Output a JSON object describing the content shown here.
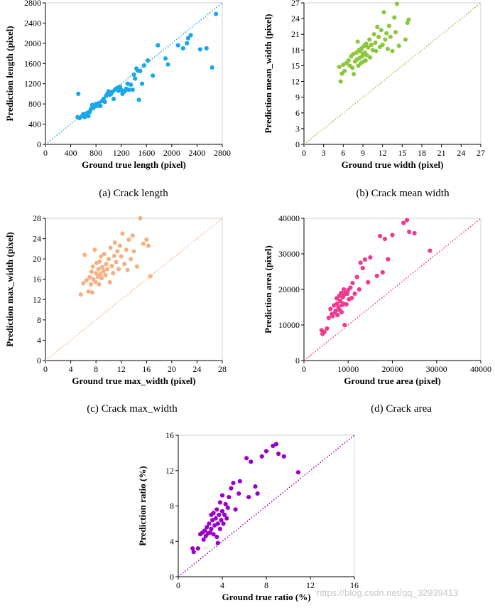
{
  "captions": {
    "a": "(a) Crack length",
    "b": "(b) Crack mean width",
    "c": "(c) Crack max_width",
    "d": "(d) Crack area"
  },
  "watermark": "https://blog.csdn.net/qq_32939413",
  "chart_data": [
    {
      "type": "scatter",
      "xlabel": "Ground true length (pixel)",
      "ylabel": "Prediction length (pixel)",
      "xlim": [
        0,
        2800
      ],
      "ylim": [
        0,
        2800
      ],
      "xticks": [
        "0",
        "400",
        "800",
        "1200",
        "1600",
        "2000",
        "2400",
        "2800"
      ],
      "yticks": [
        "0",
        "400",
        "800",
        "1200",
        "1600",
        "2000",
        "2400",
        "2800"
      ],
      "color": "#1aa7e8",
      "reference_line": "y = x",
      "points": [
        [
          520,
          1000
        ],
        [
          510,
          540
        ],
        [
          540,
          520
        ],
        [
          580,
          560
        ],
        [
          600,
          600
        ],
        [
          620,
          540
        ],
        [
          640,
          580
        ],
        [
          660,
          620
        ],
        [
          680,
          560
        ],
        [
          700,
          640
        ],
        [
          720,
          700
        ],
        [
          740,
          780
        ],
        [
          760,
          720
        ],
        [
          780,
          760
        ],
        [
          800,
          800
        ],
        [
          820,
          760
        ],
        [
          850,
          820
        ],
        [
          870,
          760
        ],
        [
          900,
          860
        ],
        [
          920,
          900
        ],
        [
          940,
          840
        ],
        [
          960,
          960
        ],
        [
          980,
          1000
        ],
        [
          1000,
          1050
        ],
        [
          1020,
          980
        ],
        [
          1040,
          1000
        ],
        [
          1060,
          1040
        ],
        [
          1080,
          900
        ],
        [
          1100,
          1080
        ],
        [
          1120,
          1100
        ],
        [
          1140,
          1120
        ],
        [
          1160,
          1060
        ],
        [
          1180,
          1140
        ],
        [
          1200,
          1080
        ],
        [
          1220,
          1000
        ],
        [
          1240,
          1040
        ],
        [
          1260,
          1060
        ],
        [
          1280,
          1100
        ],
        [
          1300,
          1200
        ],
        [
          1320,
          1080
        ],
        [
          1350,
          1180
        ],
        [
          1380,
          1080
        ],
        [
          1400,
          1380
        ],
        [
          1420,
          1300
        ],
        [
          1440,
          1500
        ],
        [
          1460,
          1460
        ],
        [
          1480,
          880
        ],
        [
          1500,
          1450
        ],
        [
          1530,
          1200
        ],
        [
          1560,
          1560
        ],
        [
          1620,
          1660
        ],
        [
          1700,
          1360
        ],
        [
          1780,
          1960
        ],
        [
          1900,
          1700
        ],
        [
          1940,
          1580
        ],
        [
          2100,
          1960
        ],
        [
          2180,
          1900
        ],
        [
          2240,
          2000
        ],
        [
          2260,
          2100
        ],
        [
          2300,
          2160
        ],
        [
          2450,
          1880
        ],
        [
          2550,
          1900
        ],
        [
          2640,
          1520
        ],
        [
          2700,
          2580
        ]
      ]
    },
    {
      "type": "scatter",
      "xlabel": "Ground true width (pixel)",
      "ylabel": "Prediction mean_width (pixel)",
      "xlim": [
        0,
        27
      ],
      "ylim": [
        0,
        27
      ],
      "xticks": [
        "0",
        "3",
        "6",
        "9",
        "12",
        "15",
        "18",
        "21",
        "24",
        "27"
      ],
      "yticks": [
        "0",
        "3",
        "6",
        "9",
        "12",
        "15",
        "18",
        "21",
        "24",
        "27"
      ],
      "color": "#8cc63f",
      "reference_line": "y = x",
      "points": [
        [
          5.4,
          14.8
        ],
        [
          5.6,
          12.0
        ],
        [
          5.8,
          13.5
        ],
        [
          6.0,
          15.2
        ],
        [
          6.2,
          14.0
        ],
        [
          6.5,
          15.5
        ],
        [
          6.8,
          16.0
        ],
        [
          7.0,
          15.0
        ],
        [
          7.2,
          16.8
        ],
        [
          7.4,
          14.6
        ],
        [
          7.5,
          17.2
        ],
        [
          7.6,
          13.4
        ],
        [
          7.8,
          15.8
        ],
        [
          8.0,
          17.5
        ],
        [
          8.1,
          16.2
        ],
        [
          8.2,
          19.6
        ],
        [
          8.3,
          15.0
        ],
        [
          8.4,
          18.0
        ],
        [
          8.5,
          16.5
        ],
        [
          8.6,
          17.8
        ],
        [
          8.7,
          15.5
        ],
        [
          8.8,
          18.3
        ],
        [
          8.9,
          16.8
        ],
        [
          9.0,
          17.2
        ],
        [
          9.1,
          15.8
        ],
        [
          9.2,
          18.8
        ],
        [
          9.3,
          17.5
        ],
        [
          9.4,
          16.0
        ],
        [
          9.5,
          19.2
        ],
        [
          9.6,
          17.0
        ],
        [
          9.8,
          18.5
        ],
        [
          10.0,
          20.0
        ],
        [
          10.1,
          16.6
        ],
        [
          10.3,
          19.0
        ],
        [
          10.5,
          18.0
        ],
        [
          10.7,
          21.0
        ],
        [
          10.9,
          19.4
        ],
        [
          11.0,
          17.8
        ],
        [
          11.2,
          22.4
        ],
        [
          11.4,
          20.5
        ],
        [
          11.6,
          18.6
        ],
        [
          11.8,
          21.8
        ],
        [
          12.0,
          19.0
        ],
        [
          12.2,
          25.2
        ],
        [
          12.4,
          20.0
        ],
        [
          12.6,
          21.2
        ],
        [
          12.8,
          18.2
        ],
        [
          13.0,
          22.6
        ],
        [
          13.2,
          20.5
        ],
        [
          13.5,
          17.8
        ],
        [
          13.8,
          24.2
        ],
        [
          14.0,
          21.4
        ],
        [
          14.2,
          26.8
        ],
        [
          14.5,
          18.8
        ],
        [
          15.5,
          20.0
        ],
        [
          15.8,
          23.2
        ],
        [
          16.0,
          23.8
        ]
      ]
    },
    {
      "type": "scatter",
      "xlabel": "Ground true max_width (pixel)",
      "ylabel": "Prediction max_width (pixel)",
      "xlim": [
        0,
        28
      ],
      "ylim": [
        0,
        28
      ],
      "xticks": [
        "0",
        "4",
        "8",
        "12",
        "16",
        "20",
        "24",
        "28"
      ],
      "yticks": [
        "0",
        "4",
        "8",
        "12",
        "16",
        "20",
        "24",
        "28"
      ],
      "color": "#f4b183",
      "reference_line": "y = x",
      "points": [
        [
          5.6,
          13.0
        ],
        [
          6.0,
          15.2
        ],
        [
          6.2,
          20.8
        ],
        [
          6.5,
          15.8
        ],
        [
          6.8,
          13.6
        ],
        [
          7.0,
          16.4
        ],
        [
          7.2,
          15.0
        ],
        [
          7.3,
          17.5
        ],
        [
          7.4,
          13.4
        ],
        [
          7.5,
          18.5
        ],
        [
          7.6,
          16.0
        ],
        [
          7.8,
          21.8
        ],
        [
          7.9,
          15.5
        ],
        [
          8.0,
          17.2
        ],
        [
          8.1,
          19.2
        ],
        [
          8.3,
          16.5
        ],
        [
          8.4,
          18.0
        ],
        [
          8.5,
          15.0
        ],
        [
          8.6,
          19.5
        ],
        [
          8.7,
          17.0
        ],
        [
          8.8,
          20.5
        ],
        [
          8.9,
          16.2
        ],
        [
          9.0,
          18.4
        ],
        [
          9.2,
          17.6
        ],
        [
          9.3,
          21.0
        ],
        [
          9.5,
          16.8
        ],
        [
          9.6,
          19.0
        ],
        [
          9.8,
          18.0
        ],
        [
          10.0,
          20.0
        ],
        [
          10.2,
          15.4
        ],
        [
          10.3,
          22.2
        ],
        [
          10.5,
          18.6
        ],
        [
          10.7,
          17.2
        ],
        [
          10.9,
          20.6
        ],
        [
          11.0,
          23.2
        ],
        [
          11.2,
          19.4
        ],
        [
          11.4,
          21.5
        ],
        [
          11.6,
          18.0
        ],
        [
          11.8,
          22.6
        ],
        [
          12.0,
          20.5
        ],
        [
          12.2,
          25.0
        ],
        [
          12.5,
          19.0
        ],
        [
          12.8,
          21.8
        ],
        [
          13.0,
          17.8
        ],
        [
          13.2,
          23.8
        ],
        [
          13.5,
          20.0
        ],
        [
          13.8,
          24.6
        ],
        [
          14.0,
          21.5
        ],
        [
          14.5,
          18.5
        ],
        [
          15.0,
          28.0
        ],
        [
          15.5,
          23.0
        ],
        [
          16.0,
          23.8
        ],
        [
          16.3,
          22.6
        ],
        [
          16.6,
          16.6
        ]
      ]
    },
    {
      "type": "scatter",
      "xlabel": "Ground true area (pixel)",
      "ylabel": "Prediction area (pixel)",
      "xlim": [
        0,
        40000
      ],
      "ylim": [
        0,
        40000
      ],
      "xticks": [
        "0",
        "10000",
        "20000",
        "30000",
        "40000"
      ],
      "yticks": [
        "0",
        "10000",
        "20000",
        "30000",
        "40000"
      ],
      "color": "#f0398f",
      "reference_line": "y = x",
      "points": [
        [
          4000,
          8500
        ],
        [
          4200,
          7500
        ],
        [
          4600,
          8000
        ],
        [
          5200,
          9000
        ],
        [
          5600,
          12000
        ],
        [
          6000,
          14500
        ],
        [
          6300,
          13000
        ],
        [
          6500,
          12500
        ],
        [
          6800,
          15500
        ],
        [
          7000,
          13500
        ],
        [
          7200,
          14000
        ],
        [
          7400,
          17500
        ],
        [
          7500,
          16000
        ],
        [
          7600,
          12800
        ],
        [
          7800,
          15000
        ],
        [
          8000,
          18200
        ],
        [
          8100,
          14200
        ],
        [
          8200,
          16800
        ],
        [
          8400,
          19000
        ],
        [
          8500,
          13600
        ],
        [
          8600,
          15600
        ],
        [
          8800,
          17800
        ],
        [
          8900,
          16000
        ],
        [
          9000,
          20000
        ],
        [
          9100,
          18500
        ],
        [
          9200,
          10000
        ],
        [
          9400,
          19000
        ],
        [
          9600,
          15800
        ],
        [
          9800,
          18800
        ],
        [
          10000,
          19800
        ],
        [
          10200,
          17200
        ],
        [
          10500,
          20500
        ],
        [
          10800,
          17600
        ],
        [
          11000,
          21800
        ],
        [
          11500,
          18800
        ],
        [
          12000,
          23500
        ],
        [
          12500,
          20000
        ],
        [
          12800,
          27500
        ],
        [
          13300,
          26000
        ],
        [
          13800,
          28400
        ],
        [
          14500,
          22000
        ],
        [
          15000,
          29000
        ],
        [
          16500,
          23800
        ],
        [
          17200,
          35000
        ],
        [
          17800,
          24800
        ],
        [
          18300,
          34200
        ],
        [
          19000,
          28500
        ],
        [
          20000,
          35300
        ],
        [
          22500,
          38700
        ],
        [
          23300,
          39500
        ],
        [
          23800,
          36200
        ],
        [
          25000,
          35800
        ],
        [
          28500,
          30900
        ]
      ]
    },
    {
      "type": "scatter",
      "xlabel": "Ground true ratio (%)",
      "ylabel": "Prediction ratio (%)",
      "xlim": [
        0,
        16
      ],
      "ylim": [
        0,
        16
      ],
      "xticks": [
        "0",
        "4",
        "8",
        "12",
        "16"
      ],
      "yticks": [
        "0",
        "4",
        "8",
        "12",
        "16"
      ],
      "color": "#9b00c8",
      "reference_line": "y = x",
      "points": [
        [
          1.3,
          3.2
        ],
        [
          1.4,
          2.8
        ],
        [
          1.8,
          3.2
        ],
        [
          2.0,
          4.8
        ],
        [
          2.2,
          5.0
        ],
        [
          2.3,
          4.2
        ],
        [
          2.4,
          5.2
        ],
        [
          2.5,
          4.6
        ],
        [
          2.6,
          5.6
        ],
        [
          2.7,
          4.9
        ],
        [
          2.8,
          6.0
        ],
        [
          2.9,
          5.0
        ],
        [
          3.0,
          7.0
        ],
        [
          3.0,
          5.4
        ],
        [
          3.1,
          6.4
        ],
        [
          3.2,
          4.8
        ],
        [
          3.2,
          7.2
        ],
        [
          3.3,
          5.8
        ],
        [
          3.4,
          6.6
        ],
        [
          3.5,
          4.5
        ],
        [
          3.5,
          7.6
        ],
        [
          3.6,
          6.0
        ],
        [
          3.6,
          3.8
        ],
        [
          3.7,
          7.0
        ],
        [
          3.8,
          5.4
        ],
        [
          3.8,
          8.4
        ],
        [
          3.9,
          6.4
        ],
        [
          4.0,
          7.4
        ],
        [
          4.0,
          9.2
        ],
        [
          4.1,
          6.0
        ],
        [
          4.2,
          7.0
        ],
        [
          4.3,
          8.2
        ],
        [
          4.4,
          6.6
        ],
        [
          4.5,
          7.8
        ],
        [
          4.6,
          9.0
        ],
        [
          4.8,
          10.0
        ],
        [
          5.0,
          10.6
        ],
        [
          5.2,
          7.6
        ],
        [
          5.5,
          9.4
        ],
        [
          5.6,
          10.8
        ],
        [
          6.2,
          13.4
        ],
        [
          6.4,
          9.0
        ],
        [
          6.6,
          13.0
        ],
        [
          7.0,
          10.2
        ],
        [
          7.2,
          9.4
        ],
        [
          7.6,
          13.6
        ],
        [
          8.0,
          14.2
        ],
        [
          8.6,
          14.8
        ],
        [
          8.9,
          15.0
        ],
        [
          9.1,
          13.9
        ],
        [
          9.6,
          13.6
        ],
        [
          10.9,
          11.8
        ]
      ]
    }
  ]
}
